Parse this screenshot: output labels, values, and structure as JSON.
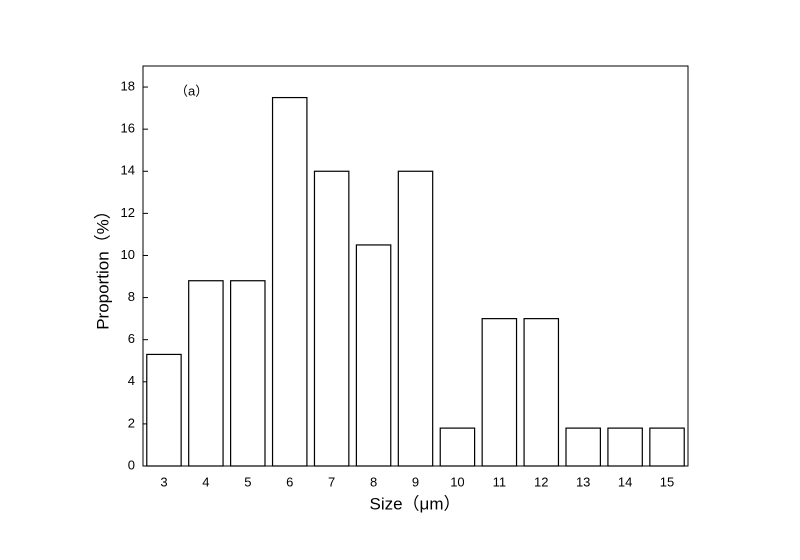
{
  "chart_data": {
    "type": "bar",
    "annotation": "（a）",
    "x_label": "Size（μm）",
    "y_label": "Proportion（%）",
    "categories": [
      "3",
      "4",
      "5",
      "6",
      "7",
      "8",
      "9",
      "10",
      "11",
      "12",
      "13",
      "14",
      "15"
    ],
    "values": [
      5.3,
      8.8,
      8.8,
      17.5,
      14.0,
      10.5,
      14.0,
      1.8,
      7.0,
      7.0,
      1.8,
      1.8,
      1.8
    ],
    "color": "#ffffff",
    "edgecolor": "#000000",
    "ylim": [
      0,
      19
    ],
    "yticks": [
      0,
      2,
      4,
      6,
      8,
      10,
      12,
      14,
      16,
      18
    ],
    "grid": false
  }
}
